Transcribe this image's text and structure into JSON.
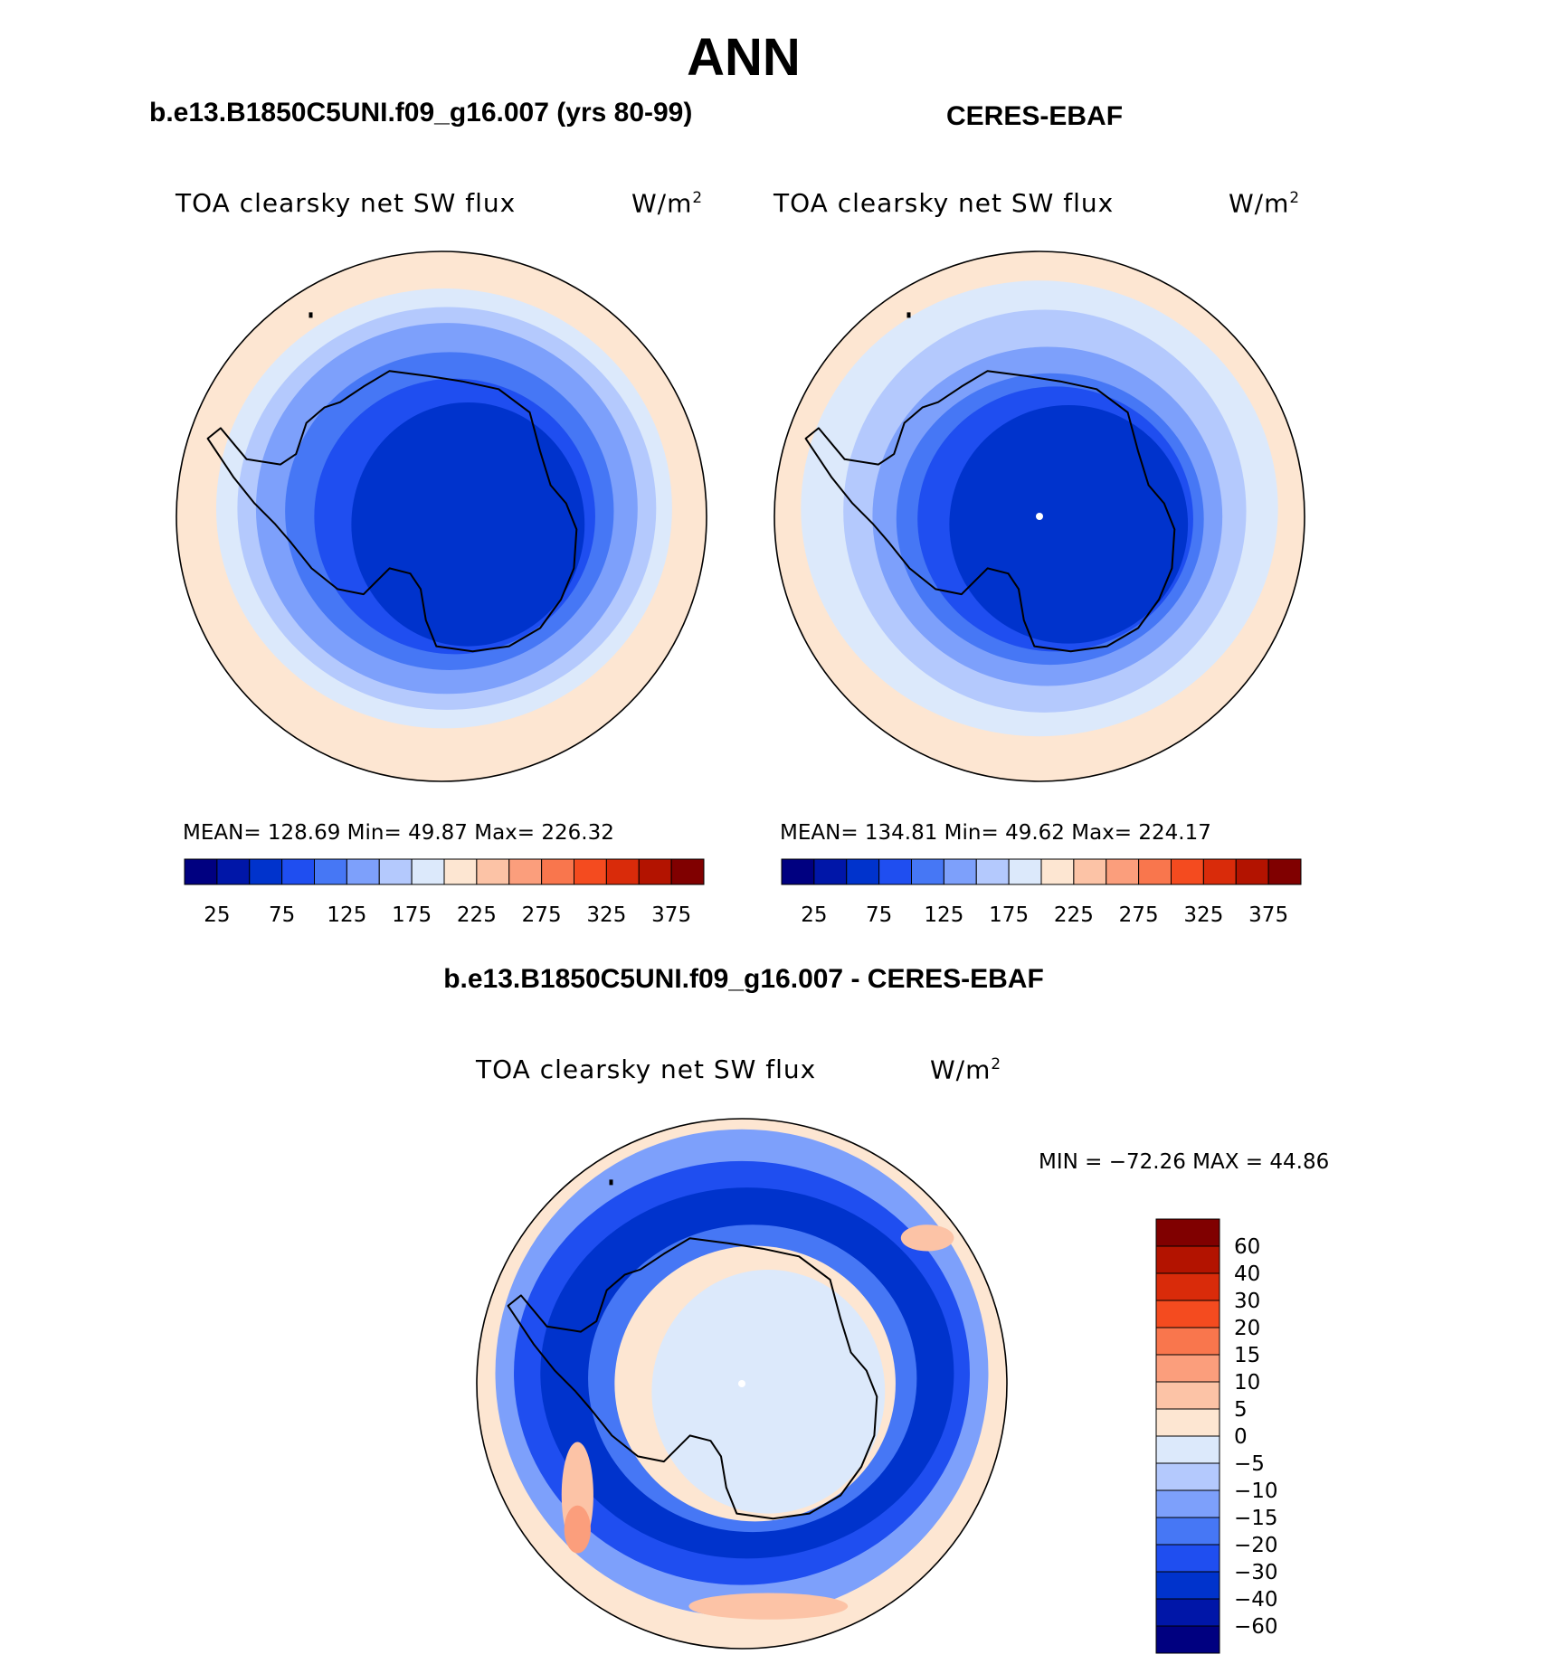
{
  "figure": {
    "title": "ANN",
    "left_case": "b.e13.B1850C5UNI.f09_g16.007 (yrs 80-99)",
    "right_case": "CERES-EBAF",
    "diff_case": "b.e13.B1850C5UNI.f09_g16.007 - CERES-EBAF"
  },
  "chart_data": [
    {
      "type": "heatmap",
      "projection": "south-polar-stereographic",
      "variable": "TOA clearsky net SW flux",
      "units": "W/m",
      "units_exp": "2",
      "stats_label": "MEAN=  128.69   Min=    49.87   Max=  226.32",
      "mean": 128.69,
      "min": 49.87,
      "max": 226.32,
      "levels": [
        25,
        50,
        75,
        100,
        125,
        150,
        175,
        200,
        225,
        250,
        275,
        300,
        325,
        350,
        375
      ],
      "tick_labels": [
        "25",
        "75",
        "125",
        "175",
        "225",
        "275",
        "325",
        "375"
      ],
      "colorbar_orientation": "horizontal",
      "rings": [
        {
          "value": 212,
          "rx": 0.99,
          "ry": 0.99,
          "dx": 0,
          "dy": 0
        },
        {
          "value": 188,
          "rx": 0.86,
          "ry": 0.83,
          "dx": 0.01,
          "dy": -0.03
        },
        {
          "value": 162,
          "rx": 0.79,
          "ry": 0.76,
          "dx": 0.02,
          "dy": -0.03
        },
        {
          "value": 138,
          "rx": 0.72,
          "ry": 0.7,
          "dx": 0.02,
          "dy": -0.03
        },
        {
          "value": 112,
          "rx": 0.62,
          "ry": 0.6,
          "dx": 0.03,
          "dy": -0.02
        },
        {
          "value": 88,
          "rx": 0.53,
          "ry": 0.52,
          "dx": 0.05,
          "dy": 0.0
        },
        {
          "value": 62,
          "rx": 0.44,
          "ry": 0.46,
          "dx": 0.1,
          "dy": 0.03
        }
      ]
    },
    {
      "type": "heatmap",
      "projection": "south-polar-stereographic",
      "variable": "TOA clearsky net SW flux",
      "units": "W/m",
      "units_exp": "2",
      "stats_label": "MEAN=  134.81   Min=    49.62   Max=  224.17",
      "mean": 134.81,
      "min": 49.62,
      "max": 224.17,
      "levels": [
        25,
        50,
        75,
        100,
        125,
        150,
        175,
        200,
        225,
        250,
        275,
        300,
        325,
        350,
        375
      ],
      "tick_labels": [
        "25",
        "75",
        "125",
        "175",
        "225",
        "275",
        "325",
        "375"
      ],
      "colorbar_orientation": "horizontal",
      "rings": [
        {
          "value": 212,
          "rx": 0.99,
          "ry": 0.99,
          "dx": 0,
          "dy": 0
        },
        {
          "value": 188,
          "rx": 0.9,
          "ry": 0.86,
          "dx": 0.0,
          "dy": -0.03
        },
        {
          "value": 162,
          "rx": 0.76,
          "ry": 0.76,
          "dx": 0.02,
          "dy": -0.02
        },
        {
          "value": 138,
          "rx": 0.66,
          "ry": 0.64,
          "dx": 0.03,
          "dy": 0.0
        },
        {
          "value": 112,
          "rx": 0.58,
          "ry": 0.55,
          "dx": 0.04,
          "dy": 0.01
        },
        {
          "value": 88,
          "rx": 0.52,
          "ry": 0.5,
          "dx": 0.06,
          "dy": 0.01
        },
        {
          "value": 62,
          "rx": 0.45,
          "ry": 0.45,
          "dx": 0.11,
          "dy": 0.03
        }
      ]
    },
    {
      "type": "heatmap",
      "projection": "south-polar-stereographic",
      "variable": "TOA clearsky net SW flux",
      "units": "W/m",
      "units_exp": "2",
      "stats_label": "MIN = −72.26 MAX =   44.86",
      "min": -72.26,
      "max": 44.86,
      "levels": [
        -60,
        -40,
        -30,
        -20,
        -15,
        -10,
        -5,
        0,
        5,
        10,
        15,
        20,
        30,
        40,
        60
      ],
      "tick_labels": [
        "60",
        "40",
        "30",
        "20",
        "15",
        "10",
        "5",
        "0",
        "−5",
        "−10",
        "−15",
        "−20",
        "−30",
        "−40",
        "−60"
      ],
      "colorbar_orientation": "vertical",
      "rings": [
        {
          "value": 2,
          "rx": 0.99,
          "ry": 0.99,
          "dx": 0,
          "dy": 0
        },
        {
          "value": -12,
          "rx": 0.93,
          "ry": 0.92,
          "dx": 0.0,
          "dy": -0.04
        },
        {
          "value": -25,
          "rx": 0.86,
          "ry": 0.8,
          "dx": 0.0,
          "dy": -0.04
        },
        {
          "value": -35,
          "rx": 0.78,
          "ry": 0.7,
          "dx": 0.02,
          "dy": -0.04
        },
        {
          "value": -17,
          "rx": 0.62,
          "ry": 0.58,
          "dx": 0.04,
          "dy": -0.02
        },
        {
          "value": 2,
          "rx": 0.53,
          "ry": 0.52,
          "dx": 0.05,
          "dy": 0.0
        },
        {
          "value": -2,
          "rx": 0.44,
          "ry": 0.46,
          "dx": 0.1,
          "dy": 0.03
        }
      ],
      "blobs": [
        {
          "value": 7,
          "rx": 0.06,
          "ry": 0.2,
          "dx": -0.62,
          "dy": 0.42
        },
        {
          "value": 7,
          "rx": 0.3,
          "ry": 0.05,
          "dx": 0.1,
          "dy": 0.84
        },
        {
          "value": 12,
          "rx": 0.05,
          "ry": 0.09,
          "dx": -0.62,
          "dy": 0.55
        },
        {
          "value": 7,
          "rx": 0.1,
          "ry": 0.05,
          "dx": 0.7,
          "dy": -0.55
        }
      ]
    }
  ],
  "palettes": {
    "abs": [
      "#000080",
      "#0016a8",
      "#0033cc",
      "#1f4ef0",
      "#4677f5",
      "#7da0fb",
      "#b4c9fd",
      "#dce9fb",
      "#fde6d2",
      "#fcc3a6",
      "#fb9e7c",
      "#f9764d",
      "#f44b1f",
      "#d92b0a",
      "#b31300",
      "#800000"
    ],
    "diff": [
      "#000080",
      "#0016a8",
      "#0033cc",
      "#1f4ef0",
      "#4677f5",
      "#7da0fb",
      "#b4c9fd",
      "#dce9fb",
      "#fde6d2",
      "#fcc3a6",
      "#fb9e7c",
      "#f9764d",
      "#f44b1f",
      "#d92b0a",
      "#b31300",
      "#800000"
    ]
  }
}
